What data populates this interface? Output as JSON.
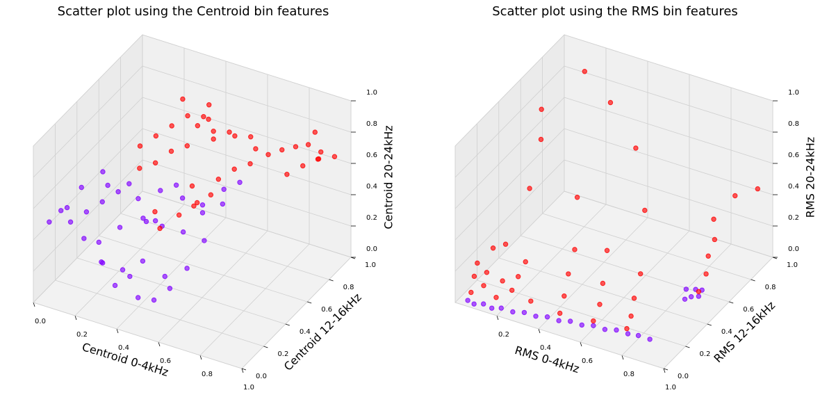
{
  "chart_data": [
    {
      "type": "scatter3d",
      "title": "Scatter plot using the Centroid bin features",
      "xlabel": "Centroid 0-4kHz",
      "ylabel": "Centroid 12-16kHz",
      "zlabel": "Centroid 20-24kHz",
      "xlim": [
        0,
        1
      ],
      "ylim": [
        0,
        1
      ],
      "zlim": [
        0,
        1
      ],
      "xticks": [
        {
          "value": 0,
          "label": "0.0"
        },
        0.2,
        0.4,
        0.6,
        0.8,
        {
          "value": 1,
          "label": "1.0"
        }
      ],
      "yticks": [
        {
          "value": 0,
          "label": "0.0"
        },
        0.2,
        0.4,
        0.6,
        0.8,
        {
          "value": 1,
          "label": "1.0"
        }
      ],
      "zticks": [
        {
          "value": 0,
          "label": "0.0"
        },
        0.2,
        0.4,
        0.6,
        0.8,
        {
          "value": 1,
          "label": "1.0"
        }
      ],
      "grid": true,
      "series": [
        {
          "color": "#8000ff",
          "x": [
            0.05,
            0.08,
            0.1,
            0.12,
            0.15,
            0.18,
            0.2,
            0.22,
            0.25,
            0.28,
            0.3,
            0.32,
            0.35,
            0.38,
            0.4,
            0.42,
            0.45,
            0.48,
            0.5,
            0.52,
            0.55,
            0.58,
            0.6,
            0.62,
            0.3,
            0.35,
            0.4,
            0.45,
            0.5,
            0.55,
            0.2,
            0.25,
            0.15,
            0.1,
            0.6,
            0.65,
            0.55,
            0.45,
            0.35,
            0.28
          ],
          "y": [
            0.05,
            0.1,
            0.15,
            0.08,
            0.2,
            0.12,
            0.25,
            0.18,
            0.3,
            0.1,
            0.22,
            0.35,
            0.15,
            0.28,
            0.4,
            0.2,
            0.32,
            0.45,
            0.25,
            0.38,
            0.5,
            0.3,
            0.42,
            0.55,
            0.05,
            0.08,
            0.12,
            0.1,
            0.15,
            0.2,
            0.3,
            0.4,
            0.35,
            0.25,
            0.6,
            0.65,
            0.5,
            0.45,
            0.45,
            0.5
          ],
          "z": [
            0.5,
            0.55,
            0.45,
            0.6,
            0.5,
            0.4,
            0.55,
            0.35,
            0.6,
            0.3,
            0.45,
            0.55,
            0.25,
            0.5,
            0.6,
            0.3,
            0.45,
            0.55,
            0.2,
            0.4,
            0.5,
            0.25,
            0.35,
            0.5,
            0.35,
            0.2,
            0.25,
            0.15,
            0.12,
            0.18,
            0.62,
            0.58,
            0.65,
            0.6,
            0.55,
            0.58,
            0.45,
            0.62,
            0.35,
            0.28
          ]
        },
        {
          "color": "#ff0000",
          "x": [
            0.25,
            0.3,
            0.35,
            0.4,
            0.45,
            0.5,
            0.55,
            0.6,
            0.65,
            0.7,
            0.75,
            0.8,
            0.85,
            0.9,
            0.95,
            1.0,
            0.3,
            0.35,
            0.4,
            0.45,
            0.5,
            0.55,
            0.6,
            0.65,
            0.7,
            0.4,
            0.45,
            0.5,
            0.55,
            0.6,
            0.85,
            0.9,
            0.95,
            0.92,
            0.88,
            0.5,
            0.55,
            0.6,
            0.35,
            0.45
          ],
          "y": [
            0.5,
            0.55,
            0.6,
            0.65,
            0.7,
            0.65,
            0.6,
            0.7,
            0.75,
            0.7,
            0.72,
            0.75,
            0.78,
            0.8,
            0.82,
            0.85,
            0.4,
            0.45,
            0.5,
            0.55,
            0.5,
            0.45,
            0.55,
            0.6,
            0.65,
            0.35,
            0.3,
            0.38,
            0.42,
            0.48,
            0.7,
            0.75,
            0.8,
            0.85,
            0.9,
            0.55,
            0.6,
            0.65,
            0.7,
            0.75
          ],
          "z": [
            0.75,
            0.8,
            0.85,
            0.9,
            0.88,
            0.92,
            0.85,
            0.82,
            0.8,
            0.78,
            0.75,
            0.78,
            0.8,
            0.82,
            0.78,
            0.75,
            0.7,
            0.72,
            0.78,
            0.8,
            0.6,
            0.55,
            0.65,
            0.7,
            0.72,
            0.5,
            0.45,
            0.5,
            0.55,
            0.6,
            0.68,
            0.72,
            0.75,
            0.7,
            0.82,
            0.95,
            0.9,
            0.88,
            0.95,
            0.92
          ]
        }
      ]
    },
    {
      "type": "scatter3d",
      "title": "Scatter plot using the RMS bin features",
      "xlabel": "RMS 0-4kHz",
      "ylabel": "RMS 12-16kHz",
      "zlabel": "RMS 20-24kHz",
      "xlim": [
        0,
        1
      ],
      "ylim": [
        0,
        1
      ],
      "zlim": [
        0,
        1
      ],
      "xticks": [
        0.2,
        0.4,
        0.6,
        0.8,
        {
          "value": 1,
          "label": "1.0"
        }
      ],
      "yticks": [
        {
          "value": 0,
          "label": "0.0"
        },
        0.2,
        0.4,
        0.6,
        0.8,
        {
          "value": 1,
          "label": "1.0"
        }
      ],
      "zticks": [
        {
          "value": 0,
          "label": "0.0"
        },
        0.2,
        0.4,
        0.6,
        0.8,
        {
          "value": 1,
          "label": "1.0"
        }
      ],
      "grid": true,
      "series": [
        {
          "color": "#8000ff",
          "x": [
            0.05,
            0.08,
            0.12,
            0.16,
            0.2,
            0.25,
            0.3,
            0.35,
            0.4,
            0.45,
            0.5,
            0.55,
            0.6,
            0.65,
            0.7,
            0.75,
            0.8,
            0.85,
            0.84,
            0.86,
            0.88,
            0.82,
            0.85,
            0.87
          ],
          "y": [
            0.02,
            0.02,
            0.03,
            0.03,
            0.04,
            0.05,
            0.06,
            0.07,
            0.08,
            0.09,
            0.1,
            0.11,
            0.12,
            0.13,
            0.14,
            0.15,
            0.15,
            0.16,
            0.5,
            0.52,
            0.55,
            0.55,
            0.58,
            0.6
          ],
          "z": [
            0.02,
            0.01,
            0.02,
            0.01,
            0.02,
            0.01,
            0.02,
            0.01,
            0.02,
            0.01,
            0.02,
            0.01,
            0.02,
            0.01,
            0.02,
            0.01,
            0.02,
            0.01,
            0.02,
            0.03,
            0.02,
            0.04,
            0.03,
            0.02
          ]
        },
        {
          "color": "#ff0000",
          "x": [
            0.05,
            0.06,
            0.08,
            0.1,
            0.12,
            0.14,
            0.16,
            0.18,
            0.2,
            0.22,
            0.25,
            0.28,
            0.3,
            0.2,
            0.15,
            0.1,
            0.45,
            0.46,
            0.48,
            0.5,
            0.6,
            0.62,
            0.64,
            0.65,
            0.75,
            0.76,
            0.78,
            0.8,
            0.88,
            0.9,
            0.9,
            0.92,
            0.9,
            0.15,
            0.3,
            0.5,
            0.95,
            0.35,
            0.7,
            0.98
          ],
          "y": [
            0.05,
            0.06,
            0.05,
            0.07,
            0.06,
            0.08,
            0.07,
            0.09,
            0.08,
            0.1,
            0.1,
            0.11,
            0.12,
            0.3,
            0.5,
            0.6,
            0.1,
            0.12,
            0.12,
            0.14,
            0.12,
            0.14,
            0.13,
            0.15,
            0.14,
            0.16,
            0.15,
            0.17,
            0.55,
            0.58,
            0.6,
            0.62,
            0.65,
            0.9,
            0.85,
            0.7,
            0.75,
            0.45,
            0.4,
            0.9
          ],
          "z": [
            0.05,
            0.15,
            0.25,
            0.1,
            0.2,
            0.35,
            0.05,
            0.15,
            0.4,
            0.1,
            0.2,
            0.3,
            0.05,
            0.6,
            0.75,
            0.85,
            0.05,
            0.15,
            0.3,
            0.45,
            0.05,
            0.15,
            0.3,
            0.5,
            0.05,
            0.12,
            0.25,
            0.4,
            0.05,
            0.15,
            0.25,
            0.35,
            0.45,
            0.9,
            0.8,
            0.7,
            0.55,
            0.5,
            0.6,
            0.5
          ]
        }
      ]
    }
  ]
}
